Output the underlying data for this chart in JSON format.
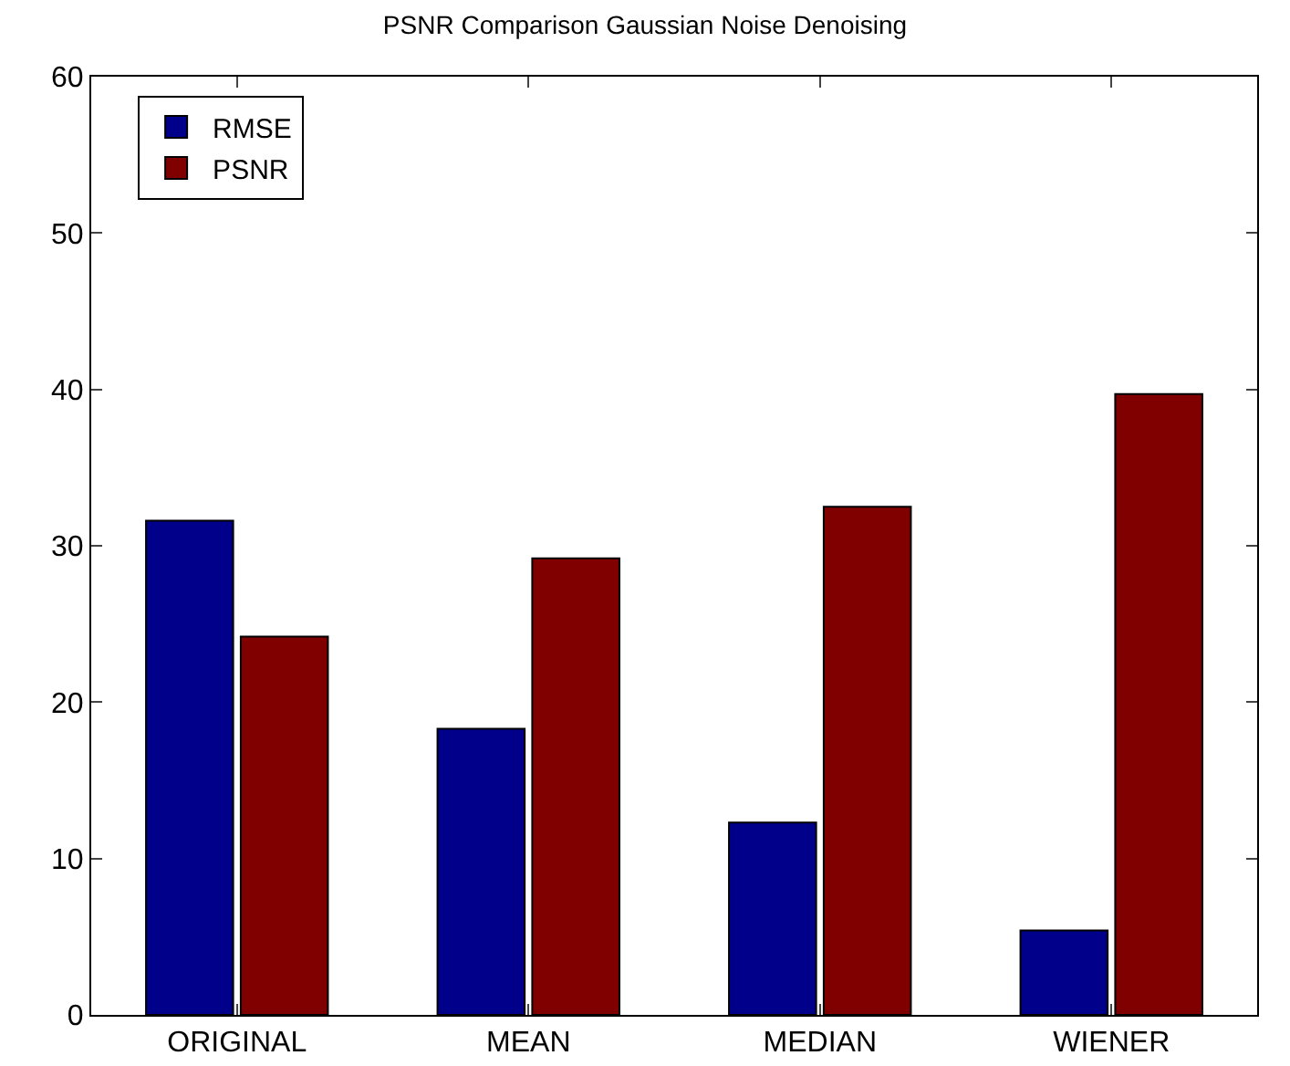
{
  "chart_data": {
    "type": "bar",
    "title": "PSNR Comparison Gaussian Noise Denoising",
    "categories": [
      "ORIGINAL",
      "MEAN",
      "MEDIAN",
      "WIENER"
    ],
    "series": [
      {
        "name": "RMSE",
        "color": "#00008b",
        "values": [
          31.6,
          18.3,
          12.3,
          5.4
        ]
      },
      {
        "name": "PSNR",
        "color": "#800000",
        "values": [
          24.2,
          29.2,
          32.5,
          39.7
        ]
      }
    ],
    "ylim": [
      0,
      60
    ],
    "yticks": [
      0,
      10,
      20,
      30,
      40,
      50,
      60
    ],
    "grid": false,
    "legend": "top left"
  }
}
